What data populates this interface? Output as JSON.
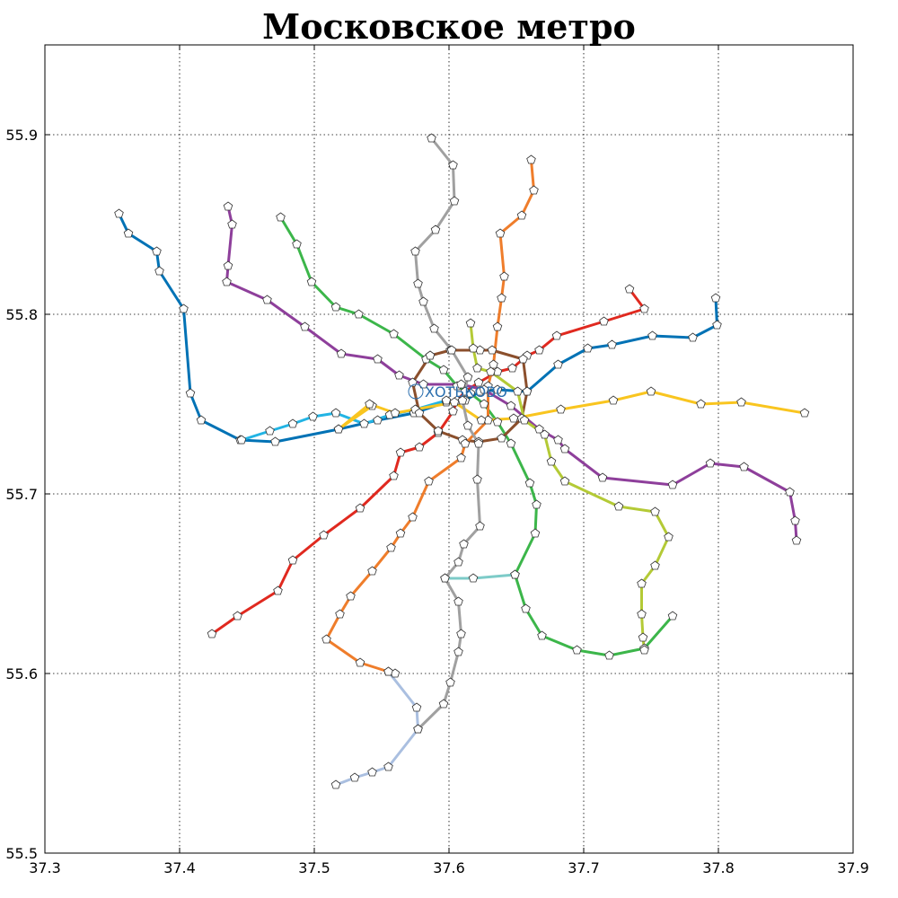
{
  "chart_data": {
    "type": "line",
    "title": "Московское метро",
    "xlabel": "",
    "ylabel": "",
    "xlim": [
      37.3,
      37.9
    ],
    "ylim": [
      55.5,
      55.95
    ],
    "xticks": [
      "37.3",
      "37.4",
      "37.5",
      "37.6",
      "37.7",
      "37.8",
      "37.9"
    ],
    "yticks": [
      "55.5",
      "55.6",
      "55.7",
      "55.8",
      "55.9"
    ],
    "grid": true,
    "annotation": {
      "text": "ХОТЬКОВО",
      "x": 37.578,
      "y": 55.758
    },
    "marker": "pentagon",
    "series": [
      {
        "color": "#e0291f",
        "points": [
          [
            37.424,
            55.622
          ],
          [
            37.443,
            55.632
          ],
          [
            37.473,
            55.646
          ],
          [
            37.484,
            55.663
          ],
          [
            37.507,
            55.677
          ],
          [
            37.534,
            55.692
          ],
          [
            37.559,
            55.71
          ],
          [
            37.564,
            55.723
          ],
          [
            37.578,
            55.726
          ],
          [
            37.592,
            55.734
          ],
          [
            37.603,
            55.746
          ],
          [
            37.606,
            55.752
          ],
          [
            37.612,
            55.757
          ],
          [
            37.622,
            55.762
          ],
          [
            37.636,
            55.768
          ],
          [
            37.647,
            55.77
          ],
          [
            37.658,
            55.777
          ],
          [
            37.667,
            55.78
          ],
          [
            37.68,
            55.788
          ],
          [
            37.715,
            55.796
          ],
          [
            37.745,
            55.803
          ],
          [
            37.734,
            55.814
          ]
        ]
      },
      {
        "color": "#3cb64a",
        "points": [
          [
            37.475,
            55.854
          ],
          [
            37.487,
            55.839
          ],
          [
            37.498,
            55.818
          ],
          [
            37.516,
            55.804
          ],
          [
            37.533,
            55.8
          ],
          [
            37.559,
            55.789
          ],
          [
            37.583,
            55.775
          ],
          [
            37.596,
            55.769
          ],
          [
            37.606,
            55.76
          ],
          [
            37.616,
            55.756
          ],
          [
            37.626,
            55.75
          ],
          [
            37.636,
            55.74
          ],
          [
            37.646,
            55.728
          ],
          [
            37.66,
            55.706
          ],
          [
            37.665,
            55.694
          ],
          [
            37.664,
            55.678
          ],
          [
            37.649,
            55.655
          ],
          [
            37.657,
            55.636
          ],
          [
            37.669,
            55.621
          ],
          [
            37.695,
            55.613
          ],
          [
            37.719,
            55.61
          ],
          [
            37.745,
            55.614
          ],
          [
            37.766,
            55.632
          ]
        ]
      },
      {
        "color": "#0072b5",
        "points": [
          [
            37.355,
            55.856
          ],
          [
            37.362,
            55.845
          ],
          [
            37.383,
            55.835
          ],
          [
            37.385,
            55.824
          ],
          [
            37.403,
            55.803
          ],
          [
            37.408,
            55.756
          ],
          [
            37.416,
            55.741
          ],
          [
            37.445,
            55.73
          ],
          [
            37.471,
            55.729
          ],
          [
            37.518,
            55.736
          ],
          [
            37.547,
            55.741
          ],
          [
            37.574,
            55.745
          ],
          [
            37.598,
            55.751
          ],
          [
            37.612,
            55.752
          ],
          [
            37.623,
            55.757
          ],
          [
            37.636,
            55.758
          ],
          [
            37.658,
            55.757
          ],
          [
            37.681,
            55.772
          ],
          [
            37.703,
            55.781
          ],
          [
            37.721,
            55.783
          ],
          [
            37.751,
            55.788
          ],
          [
            37.781,
            55.787
          ],
          [
            37.799,
            55.794
          ],
          [
            37.798,
            55.809
          ]
        ]
      },
      {
        "color": "#22b4e4",
        "points": [
          [
            37.446,
            55.73
          ],
          [
            37.467,
            55.735
          ],
          [
            37.484,
            55.739
          ],
          [
            37.499,
            55.743
          ],
          [
            37.516,
            55.745
          ],
          [
            37.537,
            55.739
          ],
          [
            37.556,
            55.744
          ],
          [
            37.575,
            55.747
          ],
          [
            37.598,
            55.752
          ]
        ]
      },
      {
        "color": "#8b4f2c",
        "points": [
          [
            37.586,
            55.777
          ],
          [
            37.601,
            55.78
          ],
          [
            37.623,
            55.78
          ],
          [
            37.632,
            55.78
          ],
          [
            37.655,
            55.775
          ],
          [
            37.658,
            55.757
          ],
          [
            37.654,
            55.742
          ],
          [
            37.639,
            55.731
          ],
          [
            37.622,
            55.729
          ],
          [
            37.61,
            55.73
          ],
          [
            37.592,
            55.735
          ],
          [
            37.578,
            55.745
          ],
          [
            37.573,
            55.762
          ],
          [
            37.586,
            55.777
          ]
        ]
      },
      {
        "color": "#ef7d2b",
        "points": [
          [
            37.661,
            55.886
          ],
          [
            37.663,
            55.869
          ],
          [
            37.654,
            55.855
          ],
          [
            37.638,
            55.845
          ],
          [
            37.641,
            55.821
          ],
          [
            37.639,
            55.809
          ],
          [
            37.636,
            55.793
          ],
          [
            37.633,
            55.772
          ],
          [
            37.629,
            55.76
          ],
          [
            37.629,
            55.741
          ],
          [
            37.612,
            55.728
          ],
          [
            37.609,
            55.72
          ],
          [
            37.585,
            55.707
          ],
          [
            37.573,
            55.687
          ],
          [
            37.564,
            55.678
          ],
          [
            37.557,
            55.67
          ],
          [
            37.543,
            55.657
          ],
          [
            37.527,
            55.643
          ],
          [
            37.519,
            55.633
          ],
          [
            37.509,
            55.619
          ],
          [
            37.534,
            55.606
          ],
          [
            37.555,
            55.601
          ],
          [
            37.56,
            55.6
          ]
        ]
      },
      {
        "color": "#8e3f9b",
        "points": [
          [
            37.436,
            55.86
          ],
          [
            37.439,
            55.85
          ],
          [
            37.436,
            55.827
          ],
          [
            37.435,
            55.818
          ],
          [
            37.465,
            55.808
          ],
          [
            37.493,
            55.793
          ],
          [
            37.52,
            55.778
          ],
          [
            37.547,
            55.775
          ],
          [
            37.563,
            55.766
          ],
          [
            37.581,
            55.761
          ],
          [
            37.609,
            55.761
          ],
          [
            37.626,
            55.758
          ],
          [
            37.646,
            55.749
          ],
          [
            37.667,
            55.736
          ],
          [
            37.681,
            55.73
          ],
          [
            37.686,
            55.725
          ],
          [
            37.714,
            55.709
          ],
          [
            37.766,
            55.705
          ],
          [
            37.794,
            55.717
          ],
          [
            37.819,
            55.715
          ],
          [
            37.853,
            55.701
          ],
          [
            37.857,
            55.685
          ],
          [
            37.858,
            55.674
          ]
        ]
      },
      {
        "color": "#f9c51f",
        "points": [
          [
            37.543,
            55.749
          ],
          [
            37.518,
            55.736
          ],
          [
            37.541,
            55.75
          ],
          [
            37.56,
            55.745
          ],
          [
            37.604,
            55.751
          ],
          [
            37.624,
            55.741
          ],
          [
            37.648,
            55.742
          ],
          [
            37.683,
            55.747
          ],
          [
            37.722,
            55.752
          ],
          [
            37.75,
            55.757
          ],
          [
            37.787,
            55.75
          ],
          [
            37.817,
            55.751
          ],
          [
            37.864,
            55.745
          ]
        ]
      },
      {
        "color": "#a0a0a0",
        "points": [
          [
            37.587,
            55.898
          ],
          [
            37.603,
            55.883
          ],
          [
            37.604,
            55.863
          ],
          [
            37.59,
            55.847
          ],
          [
            37.575,
            55.835
          ],
          [
            37.577,
            55.817
          ],
          [
            37.581,
            55.807
          ],
          [
            37.589,
            55.792
          ],
          [
            37.602,
            55.78
          ],
          [
            37.614,
            55.765
          ],
          [
            37.61,
            55.752
          ],
          [
            37.614,
            55.738
          ],
          [
            37.622,
            55.728
          ],
          [
            37.621,
            55.708
          ],
          [
            37.623,
            55.682
          ],
          [
            37.611,
            55.672
          ],
          [
            37.607,
            55.662
          ],
          [
            37.597,
            55.653
          ],
          [
            37.607,
            55.64
          ],
          [
            37.609,
            55.622
          ],
          [
            37.607,
            55.612
          ],
          [
            37.601,
            55.595
          ],
          [
            37.596,
            55.583
          ],
          [
            37.577,
            55.569
          ]
        ]
      },
      {
        "color": "#b4ca36",
        "points": [
          [
            37.616,
            55.795
          ],
          [
            37.618,
            55.781
          ],
          [
            37.621,
            55.77
          ],
          [
            37.631,
            55.768
          ],
          [
            37.651,
            55.757
          ],
          [
            37.656,
            55.741
          ],
          [
            37.671,
            55.733
          ],
          [
            37.676,
            55.718
          ],
          [
            37.686,
            55.707
          ],
          [
            37.726,
            55.693
          ],
          [
            37.753,
            55.69
          ],
          [
            37.763,
            55.676
          ],
          [
            37.753,
            55.66
          ],
          [
            37.743,
            55.65
          ],
          [
            37.743,
            55.633
          ],
          [
            37.744,
            55.62
          ],
          [
            37.745,
            55.613
          ]
        ]
      },
      {
        "color": "#aabfe0",
        "points": [
          [
            37.555,
            55.601
          ],
          [
            37.576,
            55.581
          ],
          [
            37.577,
            55.569
          ],
          [
            37.555,
            55.548
          ],
          [
            37.543,
            55.545
          ],
          [
            37.53,
            55.542
          ],
          [
            37.516,
            55.538
          ]
        ]
      },
      {
        "color": "#7dcbc8",
        "points": [
          [
            37.597,
            55.653
          ],
          [
            37.618,
            55.653
          ],
          [
            37.649,
            55.655
          ]
        ]
      }
    ]
  }
}
